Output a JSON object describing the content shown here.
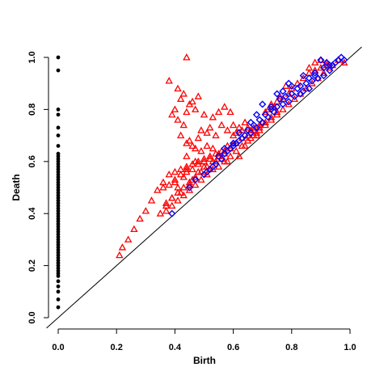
{
  "chart_data": {
    "type": "scatter",
    "title": "",
    "xlabel": "Birth",
    "ylabel": "Death",
    "xlim": [
      0,
      1
    ],
    "ylim": [
      0,
      1
    ],
    "x_ticks": [
      "0.0",
      "0.2",
      "0.4",
      "0.6",
      "0.8",
      "1.0"
    ],
    "y_ticks": [
      "0.0",
      "0.2",
      "0.4",
      "0.6",
      "0.8",
      "1.0"
    ],
    "grid": false,
    "legend": "none",
    "reference_line": {
      "from": [
        0,
        0
      ],
      "to": [
        1,
        1
      ]
    },
    "series": [
      {
        "marker": "filled-circle",
        "color": "#000000",
        "x": [
          0,
          0,
          0,
          0,
          0,
          0,
          0,
          0,
          0,
          0,
          0,
          0,
          0,
          0,
          0,
          0,
          0,
          0,
          0,
          0,
          0,
          0,
          0,
          0,
          0,
          0,
          0,
          0,
          0,
          0,
          0,
          0,
          0,
          0,
          0,
          0,
          0,
          0,
          0,
          0,
          0,
          0,
          0,
          0,
          0,
          0,
          0,
          0,
          0,
          0,
          0,
          0,
          0,
          0,
          0,
          0,
          0,
          0,
          0,
          0
        ],
        "y": [
          1.0,
          0.95,
          0.8,
          0.78,
          0.73,
          0.7,
          0.66,
          0.63,
          0.62,
          0.61,
          0.6,
          0.59,
          0.58,
          0.57,
          0.56,
          0.55,
          0.54,
          0.53,
          0.52,
          0.51,
          0.5,
          0.49,
          0.48,
          0.47,
          0.46,
          0.45,
          0.44,
          0.43,
          0.42,
          0.41,
          0.4,
          0.39,
          0.38,
          0.37,
          0.36,
          0.35,
          0.34,
          0.33,
          0.32,
          0.31,
          0.3,
          0.29,
          0.28,
          0.27,
          0.26,
          0.25,
          0.24,
          0.23,
          0.22,
          0.21,
          0.2,
          0.19,
          0.18,
          0.17,
          0.16,
          0.14,
          0.12,
          0.1,
          0.07,
          0.04
        ]
      },
      {
        "marker": "triangle",
        "color": "#ff0000",
        "x": [
          0.44,
          0.38,
          0.41,
          0.45,
          0.43,
          0.48,
          0.4,
          0.42,
          0.46,
          0.44,
          0.39,
          0.47,
          0.41,
          0.43,
          0.5,
          0.53,
          0.55,
          0.57,
          0.59,
          0.52,
          0.49,
          0.51,
          0.54,
          0.56,
          0.58,
          0.6,
          0.62,
          0.64,
          0.61,
          0.63,
          0.65,
          0.67,
          0.69,
          0.66,
          0.68,
          0.7,
          0.72,
          0.74,
          0.71,
          0.73,
          0.75,
          0.77,
          0.79,
          0.76,
          0.78,
          0.8,
          0.82,
          0.84,
          0.86,
          0.88,
          0.9,
          0.92,
          0.94,
          0.42,
          0.45,
          0.48,
          0.46,
          0.44,
          0.47,
          0.49,
          0.51,
          0.53,
          0.55,
          0.57,
          0.52,
          0.5,
          0.48,
          0.46,
          0.44,
          0.42,
          0.4,
          0.38,
          0.36,
          0.34,
          0.32,
          0.3,
          0.28,
          0.26,
          0.24,
          0.22,
          0.21,
          0.36,
          0.38,
          0.4,
          0.42,
          0.44,
          0.46,
          0.48,
          0.5,
          0.52,
          0.54,
          0.56,
          0.58,
          0.6,
          0.37,
          0.39,
          0.41,
          0.43,
          0.45,
          0.47,
          0.49,
          0.51,
          0.53,
          0.55,
          0.57,
          0.59,
          0.61,
          0.63,
          0.65,
          0.67,
          0.69,
          0.71,
          0.73,
          0.75,
          0.35,
          0.37,
          0.39,
          0.41,
          0.43,
          0.45,
          0.47,
          0.49,
          0.51,
          0.53,
          0.55,
          0.57,
          0.59,
          0.61,
          0.63,
          0.65,
          0.67,
          0.69,
          0.71,
          0.73,
          0.75,
          0.77,
          0.79,
          0.81,
          0.83,
          0.85,
          0.87,
          0.89,
          0.91,
          0.93,
          0.86,
          0.88,
          0.92,
          0.9,
          0.96,
          0.98,
          0.44,
          0.5,
          0.62,
          0.47,
          0.56,
          0.43,
          0.4,
          0.39,
          0.37,
          0.42,
          0.46,
          0.44,
          0.48,
          0.52,
          0.58,
          0.6,
          0.64,
          0.66,
          0.68,
          0.55,
          0.54,
          0.45,
          0.41
        ],
        "y": [
          1.0,
          0.91,
          0.88,
          0.82,
          0.86,
          0.85,
          0.8,
          0.84,
          0.83,
          0.79,
          0.78,
          0.8,
          0.76,
          0.74,
          0.78,
          0.77,
          0.79,
          0.81,
          0.79,
          0.73,
          0.72,
          0.71,
          0.7,
          0.74,
          0.72,
          0.74,
          0.73,
          0.75,
          0.71,
          0.72,
          0.73,
          0.73,
          0.74,
          0.72,
          0.71,
          0.75,
          0.8,
          0.81,
          0.79,
          0.82,
          0.83,
          0.84,
          0.86,
          0.85,
          0.89,
          0.88,
          0.9,
          0.92,
          0.96,
          0.98,
          0.99,
          0.98,
          0.97,
          0.7,
          0.68,
          0.69,
          0.66,
          0.67,
          0.65,
          0.64,
          0.66,
          0.65,
          0.63,
          0.64,
          0.62,
          0.61,
          0.6,
          0.59,
          0.58,
          0.57,
          0.56,
          0.55,
          0.52,
          0.49,
          0.45,
          0.41,
          0.38,
          0.34,
          0.3,
          0.27,
          0.24,
          0.5,
          0.51,
          0.53,
          0.55,
          0.56,
          0.57,
          0.59,
          0.6,
          0.61,
          0.63,
          0.64,
          0.66,
          0.67,
          0.44,
          0.46,
          0.48,
          0.5,
          0.52,
          0.54,
          0.56,
          0.58,
          0.6,
          0.62,
          0.63,
          0.65,
          0.67,
          0.69,
          0.7,
          0.72,
          0.73,
          0.75,
          0.77,
          0.79,
          0.4,
          0.41,
          0.43,
          0.45,
          0.47,
          0.49,
          0.51,
          0.53,
          0.55,
          0.57,
          0.58,
          0.6,
          0.62,
          0.64,
          0.66,
          0.68,
          0.7,
          0.72,
          0.74,
          0.76,
          0.78,
          0.8,
          0.82,
          0.84,
          0.86,
          0.88,
          0.9,
          0.92,
          0.94,
          0.96,
          0.94,
          0.95,
          0.97,
          0.96,
          0.99,
          0.98,
          0.62,
          0.58,
          0.62,
          0.6,
          0.61,
          0.54,
          0.52,
          0.46,
          0.43,
          0.48,
          0.53,
          0.57,
          0.56,
          0.57,
          0.6,
          0.7,
          0.66,
          0.69,
          0.7,
          0.62,
          0.6,
          0.51,
          0.5
        ]
      },
      {
        "marker": "diamond",
        "color": "#0000ff",
        "x": [
          0.98,
          0.97,
          0.96,
          0.9,
          0.92,
          0.94,
          0.93,
          0.91,
          0.89,
          0.88,
          0.87,
          0.86,
          0.85,
          0.84,
          0.83,
          0.82,
          0.81,
          0.8,
          0.79,
          0.78,
          0.77,
          0.76,
          0.75,
          0.74,
          0.73,
          0.72,
          0.71,
          0.7,
          0.69,
          0.68,
          0.67,
          0.66,
          0.65,
          0.64,
          0.63,
          0.62,
          0.61,
          0.6,
          0.59,
          0.58,
          0.57,
          0.56,
          0.55,
          0.54,
          0.53,
          0.52,
          0.51,
          0.5,
          0.45,
          0.47,
          0.39,
          0.75,
          0.79,
          0.86,
          0.91,
          0.84,
          0.8,
          0.77,
          0.73,
          0.7,
          0.68,
          0.66,
          0.62,
          0.6,
          0.57,
          0.83,
          0.88,
          0.95,
          0.93
        ],
        "y": [
          0.99,
          1.0,
          0.99,
          0.99,
          0.98,
          0.97,
          0.95,
          0.93,
          0.92,
          0.94,
          0.91,
          0.88,
          0.9,
          0.87,
          0.86,
          0.88,
          0.85,
          0.86,
          0.83,
          0.85,
          0.82,
          0.84,
          0.81,
          0.79,
          0.8,
          0.77,
          0.78,
          0.75,
          0.76,
          0.73,
          0.74,
          0.71,
          0.72,
          0.7,
          0.69,
          0.68,
          0.67,
          0.66,
          0.65,
          0.64,
          0.63,
          0.61,
          0.62,
          0.59,
          0.58,
          0.57,
          0.56,
          0.55,
          0.5,
          0.53,
          0.4,
          0.86,
          0.9,
          0.92,
          0.96,
          0.93,
          0.89,
          0.87,
          0.81,
          0.82,
          0.78,
          0.75,
          0.71,
          0.67,
          0.65,
          0.89,
          0.93,
          0.98,
          0.97
        ]
      }
    ]
  }
}
